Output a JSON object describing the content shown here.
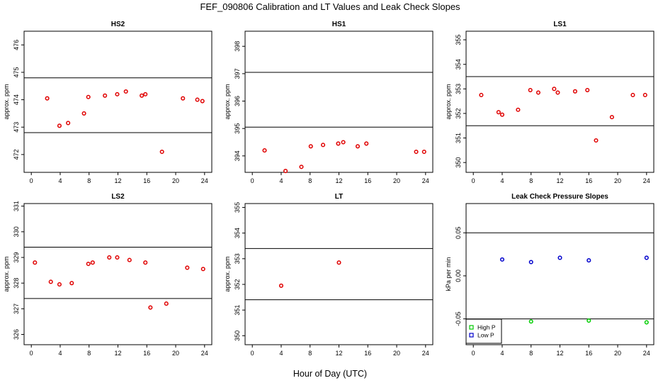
{
  "figure": {
    "title": "FEF_090806  Calibration and LT Values and Leak Check Slopes",
    "x_axis_title": "Hour of Day (UTC)"
  },
  "colors": {
    "calibration_points": "#e00000",
    "high_p": "#00cc00",
    "low_p": "#0000cc",
    "reference_lines": "#000000"
  },
  "chart_data": [
    {
      "id": "hs2",
      "type": "scatter",
      "title": "HS2",
      "ylabel": "approx. ppm",
      "xlim": [
        -1,
        25
      ],
      "ylim": [
        471.35,
        476.5
      ],
      "xticks": [
        0,
        4,
        8,
        12,
        16,
        20,
        24
      ],
      "yticks": [
        472,
        473,
        474,
        475,
        476
      ],
      "hlines": [
        472.8,
        474.8
      ],
      "series": [
        {
          "color": "#e00000",
          "x": [
            2.2,
            3.9,
            5.1,
            7.3,
            7.9,
            10.2,
            11.9,
            13.1,
            15.3,
            15.8,
            18.1,
            21.0,
            23.0,
            23.7
          ],
          "y": [
            474.05,
            473.05,
            473.15,
            473.5,
            474.1,
            474.15,
            474.2,
            474.3,
            474.15,
            474.2,
            472.1,
            474.05,
            474.0,
            473.95
          ]
        }
      ]
    },
    {
      "id": "hs1",
      "type": "scatter",
      "title": "HS1",
      "ylabel": "approx. ppm",
      "xlim": [
        -1,
        25
      ],
      "ylim": [
        393.4,
        398.55
      ],
      "xticks": [
        0,
        4,
        8,
        12,
        16,
        20,
        24
      ],
      "yticks": [
        394,
        395,
        396,
        397,
        398
      ],
      "hlines": [
        395.05,
        397.05
      ],
      "series": [
        {
          "color": "#e00000",
          "x": [
            1.7,
            4.6,
            6.8,
            8.1,
            9.8,
            11.9,
            12.6,
            14.6,
            15.8,
            22.7,
            23.8
          ],
          "y": [
            394.2,
            393.45,
            393.6,
            394.35,
            394.4,
            394.45,
            394.5,
            394.35,
            394.45,
            394.15,
            394.15
          ]
        }
      ]
    },
    {
      "id": "ls1",
      "type": "scatter",
      "title": "LS1",
      "ylabel": "approx. ppm",
      "xlim": [
        -1,
        25
      ],
      "ylim": [
        349.6,
        355.35
      ],
      "xticks": [
        0,
        4,
        8,
        12,
        16,
        20,
        24
      ],
      "yticks": [
        350,
        351,
        352,
        353,
        354,
        355
      ],
      "hlines": [
        351.5,
        353.5
      ],
      "series": [
        {
          "color": "#e00000",
          "x": [
            1.1,
            3.5,
            4.0,
            6.2,
            7.9,
            9.0,
            11.2,
            11.7,
            14.1,
            15.8,
            17.0,
            19.2,
            22.1,
            23.8
          ],
          "y": [
            352.75,
            352.05,
            351.95,
            352.15,
            352.95,
            352.85,
            353.0,
            352.85,
            352.9,
            352.95,
            350.9,
            351.85,
            352.75,
            352.75
          ]
        }
      ]
    },
    {
      "id": "ls2",
      "type": "scatter",
      "title": "LS2",
      "ylabel": "approx. ppm",
      "xlim": [
        -1,
        25
      ],
      "ylim": [
        325.6,
        331.1
      ],
      "xticks": [
        0,
        4,
        8,
        12,
        16,
        20,
        24
      ],
      "yticks": [
        326,
        327,
        328,
        329,
        330,
        331
      ],
      "hlines": [
        327.4,
        329.4
      ],
      "series": [
        {
          "color": "#e00000",
          "x": [
            0.5,
            2.7,
            3.9,
            5.6,
            7.9,
            8.5,
            10.8,
            11.9,
            13.6,
            15.8,
            16.5,
            18.7,
            21.6,
            23.8
          ],
          "y": [
            328.8,
            328.05,
            327.95,
            328.0,
            328.75,
            328.8,
            329.0,
            329.0,
            328.9,
            328.8,
            327.05,
            327.2,
            328.6,
            328.55
          ]
        }
      ]
    },
    {
      "id": "lt",
      "type": "scatter",
      "title": "LT",
      "ylabel": "approx. ppm",
      "xlim": [
        -1,
        25
      ],
      "ylim": [
        349.65,
        355.15
      ],
      "xticks": [
        0,
        4,
        8,
        12,
        16,
        20,
        24
      ],
      "yticks": [
        350,
        351,
        352,
        353,
        354,
        355
      ],
      "hlines": [
        351.4,
        353.4
      ],
      "series": [
        {
          "color": "#e00000",
          "x": [
            4.0,
            12.0
          ],
          "y": [
            351.95,
            352.85
          ]
        }
      ]
    },
    {
      "id": "leak",
      "type": "scatter",
      "title": "Leak Check Pressure Slopes",
      "ylabel": "kPa per min",
      "xlim": [
        -1,
        25
      ],
      "ylim": [
        -0.08,
        0.084
      ],
      "xticks": [
        0,
        4,
        8,
        12,
        16,
        20,
        24
      ],
      "yticks": [
        -0.05,
        0.0,
        0.05
      ],
      "ytick_labels": [
        "-0.05",
        "0.00",
        "0.05"
      ],
      "hlines": [
        -0.05,
        0.05
      ],
      "legend": {
        "position": "bottom-left",
        "entries": [
          "High P",
          "Low P"
        ]
      },
      "series": [
        {
          "name": "High P",
          "color": "#00cc00",
          "x": [
            8,
            16,
            24
          ],
          "y": [
            -0.053,
            -0.052,
            -0.054
          ]
        },
        {
          "name": "Low P",
          "color": "#0000cc",
          "x": [
            4,
            8,
            12,
            16,
            24
          ],
          "y": [
            0.019,
            0.016,
            0.021,
            0.018,
            0.021
          ]
        }
      ]
    }
  ]
}
